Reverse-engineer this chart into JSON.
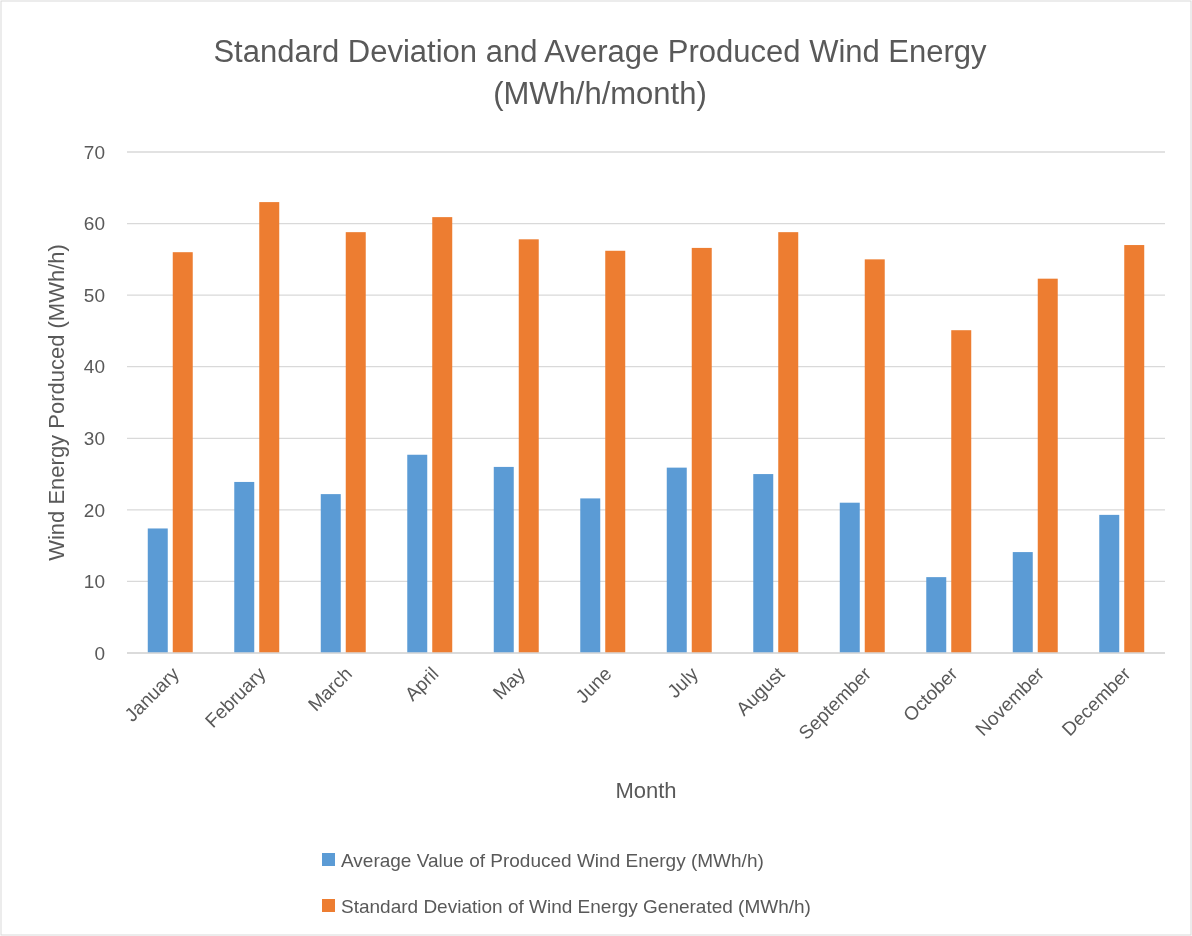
{
  "chart_data": {
    "type": "bar",
    "title": "Standard Deviation and Average Produced Wind Energy (MWh/h/month)",
    "xlabel": "Month",
    "ylabel": "Wind Energy Porduced (MWh/h)",
    "categories": [
      "January",
      "February",
      "March",
      "April",
      "May",
      "June",
      "July",
      "August",
      "September",
      "October",
      "November",
      "December"
    ],
    "series": [
      {
        "name": "Average Value of Produced Wind Energy (MWh/h)",
        "color": "#5b9bd5",
        "values": [
          17.4,
          23.9,
          22.2,
          27.7,
          26,
          21.6,
          25.9,
          25,
          21,
          10.6,
          14.1,
          19.3
        ]
      },
      {
        "name": "Standard Deviation of Wind Energy Generated (MWh/h)",
        "color": "#ed7d31",
        "values": [
          56,
          63,
          58.8,
          60.9,
          57.8,
          56.2,
          56.6,
          58.8,
          55,
          45.1,
          52.3,
          57
        ]
      }
    ],
    "ylim": [
      0,
      70
    ],
    "yticks": [
      0,
      10,
      20,
      30,
      40,
      50,
      60,
      70
    ],
    "grid": "y",
    "legend": "bottom"
  }
}
